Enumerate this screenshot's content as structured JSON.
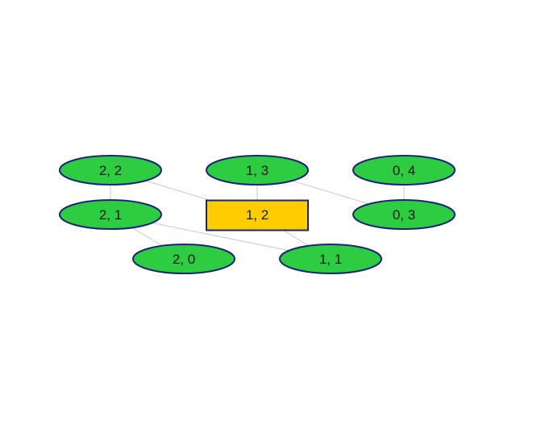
{
  "colors": {
    "background": "#ffffff",
    "node_fill": "#2ecc40",
    "node_stroke": "#1a237e",
    "selected_fill": "#ffcc00",
    "selected_stroke": "#1a237e",
    "edge": "#c8c8c8",
    "label": "#1a1a1a"
  },
  "nodes": [
    {
      "id": "n22",
      "label": "2, 2",
      "shape": "ellipse"
    },
    {
      "id": "n13",
      "label": "1, 3",
      "shape": "ellipse"
    },
    {
      "id": "n04",
      "label": "0, 4",
      "shape": "ellipse"
    },
    {
      "id": "n21",
      "label": "2, 1",
      "shape": "ellipse"
    },
    {
      "id": "n12",
      "label": "1, 2",
      "shape": "rectangle",
      "selected": true
    },
    {
      "id": "n03",
      "label": "0, 3",
      "shape": "ellipse"
    },
    {
      "id": "n20",
      "label": "2, 0",
      "shape": "ellipse"
    },
    {
      "id": "n11",
      "label": "1, 1",
      "shape": "ellipse"
    }
  ],
  "edges": [
    {
      "from": "n22",
      "to": "n21"
    },
    {
      "from": "n22",
      "to": "n12"
    },
    {
      "from": "n13",
      "to": "n12"
    },
    {
      "from": "n13",
      "to": "n03"
    },
    {
      "from": "n04",
      "to": "n03"
    },
    {
      "from": "n21",
      "to": "n20"
    },
    {
      "from": "n21",
      "to": "n11"
    },
    {
      "from": "n12",
      "to": "n11"
    }
  ]
}
